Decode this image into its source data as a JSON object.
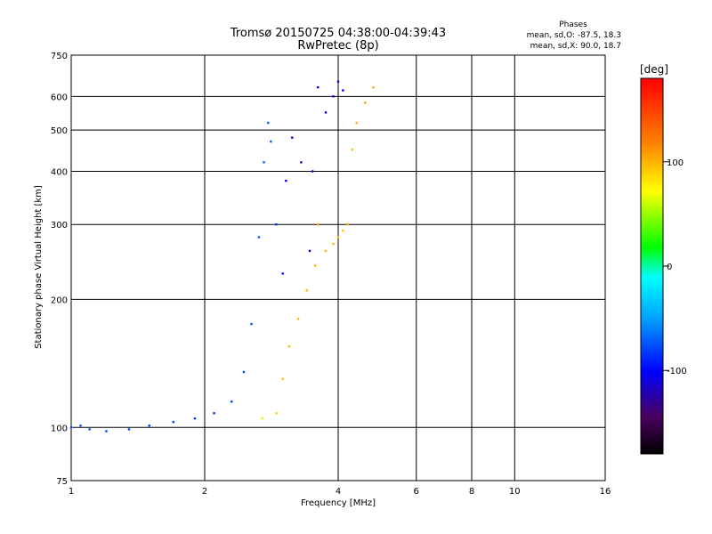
{
  "chart_data": {
    "type": "scatter",
    "title": "Tromsø 20150725 04:38:00-04:39:43",
    "subtitle": "RwPretec (8p)",
    "xlabel": "Frequency [MHz]",
    "ylabel": "Stationary phase Virtual Height [km]",
    "x_scale": "log",
    "y_scale": "log",
    "xlim": [
      1,
      16
    ],
    "ylim": [
      75,
      750
    ],
    "x_ticks": [
      1,
      2,
      4,
      6,
      8,
      10,
      16
    ],
    "y_ticks": [
      75,
      100,
      200,
      300,
      400,
      500,
      600,
      750
    ],
    "grid": true,
    "stats": {
      "heading": "Phases",
      "line_O": "mean, sd,O: -87.5, 18.3",
      "line_X": "mean, sd,X:  90.0, 18.7"
    },
    "colorbar": {
      "label": "[deg]",
      "ticks": [
        100,
        0,
        -100
      ],
      "range": [
        -180,
        180
      ]
    },
    "series": [
      {
        "mode": "O",
        "trace": [
          [
            1.0,
            100,
            -70
          ],
          [
            1.05,
            101,
            -70
          ],
          [
            1.1,
            99,
            -75
          ],
          [
            1.2,
            98,
            -78
          ],
          [
            1.35,
            99,
            -80
          ],
          [
            1.5,
            101,
            -80
          ],
          [
            1.7,
            103,
            -82
          ],
          [
            1.9,
            105,
            -82
          ],
          [
            2.1,
            108,
            -85
          ],
          [
            2.3,
            115,
            -82
          ],
          [
            2.45,
            135,
            -78
          ],
          [
            2.55,
            175,
            -75
          ],
          [
            2.65,
            280,
            -72
          ],
          [
            2.72,
            420,
            -70
          ],
          [
            2.78,
            520,
            -70
          ],
          [
            2.82,
            470,
            -72
          ],
          [
            2.9,
            300,
            -85
          ],
          [
            3.0,
            230,
            -95
          ],
          [
            3.05,
            380,
            -100
          ],
          [
            3.15,
            480,
            -105
          ],
          [
            3.3,
            420,
            -110
          ],
          [
            3.45,
            260,
            -110
          ],
          [
            3.5,
            400,
            -110
          ],
          [
            3.6,
            630,
            -110
          ],
          [
            3.75,
            550,
            -110
          ],
          [
            3.9,
            600,
            -110
          ],
          [
            4.0,
            650,
            -110
          ],
          [
            4.1,
            620,
            -110
          ]
        ]
      },
      {
        "mode": "X",
        "trace": [
          [
            2.7,
            105,
            80
          ],
          [
            2.9,
            108,
            90
          ],
          [
            3.0,
            130,
            95
          ],
          [
            3.1,
            155,
            100
          ],
          [
            3.25,
            180,
            100
          ],
          [
            3.4,
            210,
            95
          ],
          [
            3.55,
            240,
            100
          ],
          [
            3.6,
            300,
            105
          ],
          [
            3.75,
            260,
            100
          ],
          [
            3.9,
            270,
            100
          ],
          [
            4.0,
            280,
            95
          ],
          [
            4.1,
            290,
            95
          ],
          [
            4.2,
            300,
            100
          ],
          [
            4.3,
            450,
            100
          ],
          [
            4.4,
            520,
            100
          ],
          [
            4.6,
            580,
            105
          ],
          [
            4.8,
            630,
            100
          ]
        ]
      }
    ],
    "colors": {
      "frame": "#000000",
      "background": "#ffffff"
    }
  }
}
